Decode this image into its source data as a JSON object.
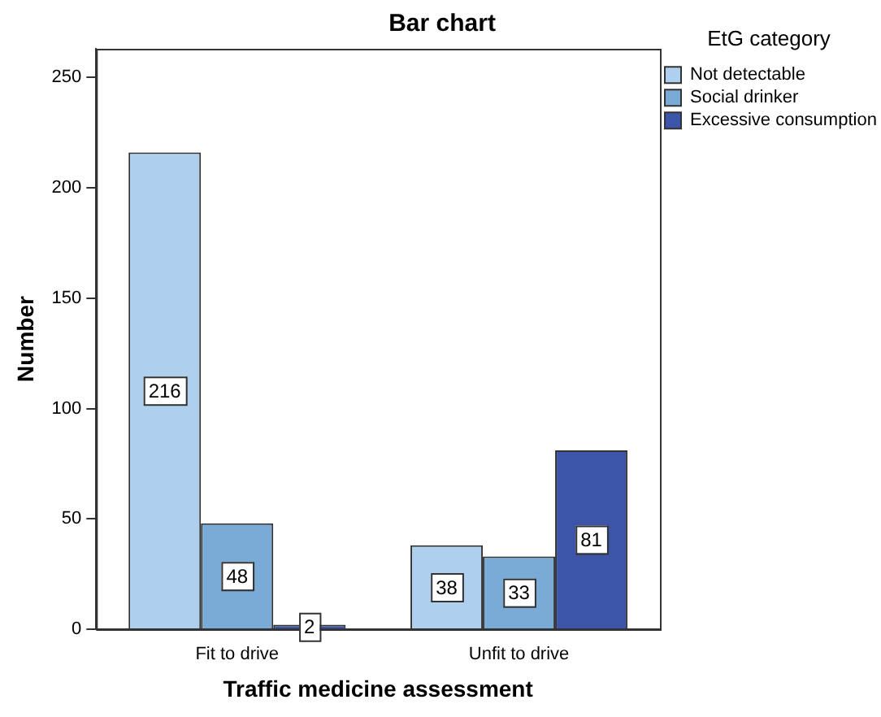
{
  "chart_data": {
    "type": "bar",
    "title": "Bar chart",
    "xlabel": "Traffic medicine assessment",
    "ylabel": "Number",
    "legend_title": "EtG category",
    "categories": [
      "Fit to drive",
      "Unfit to drive"
    ],
    "series": [
      {
        "name": "Not detectable",
        "color": "#aed0ee",
        "values": [
          216,
          38
        ]
      },
      {
        "name": "Social drinker",
        "color": "#7aaad6",
        "values": [
          48,
          33
        ]
      },
      {
        "name": "Excessive consumption",
        "color": "#3d55a8",
        "values": [
          2,
          81
        ]
      }
    ],
    "ylim": [
      0,
      263
    ],
    "yticks": [
      0,
      50,
      100,
      150,
      200,
      250
    ],
    "grid": false,
    "legend": "top right",
    "data_labels": true
  }
}
